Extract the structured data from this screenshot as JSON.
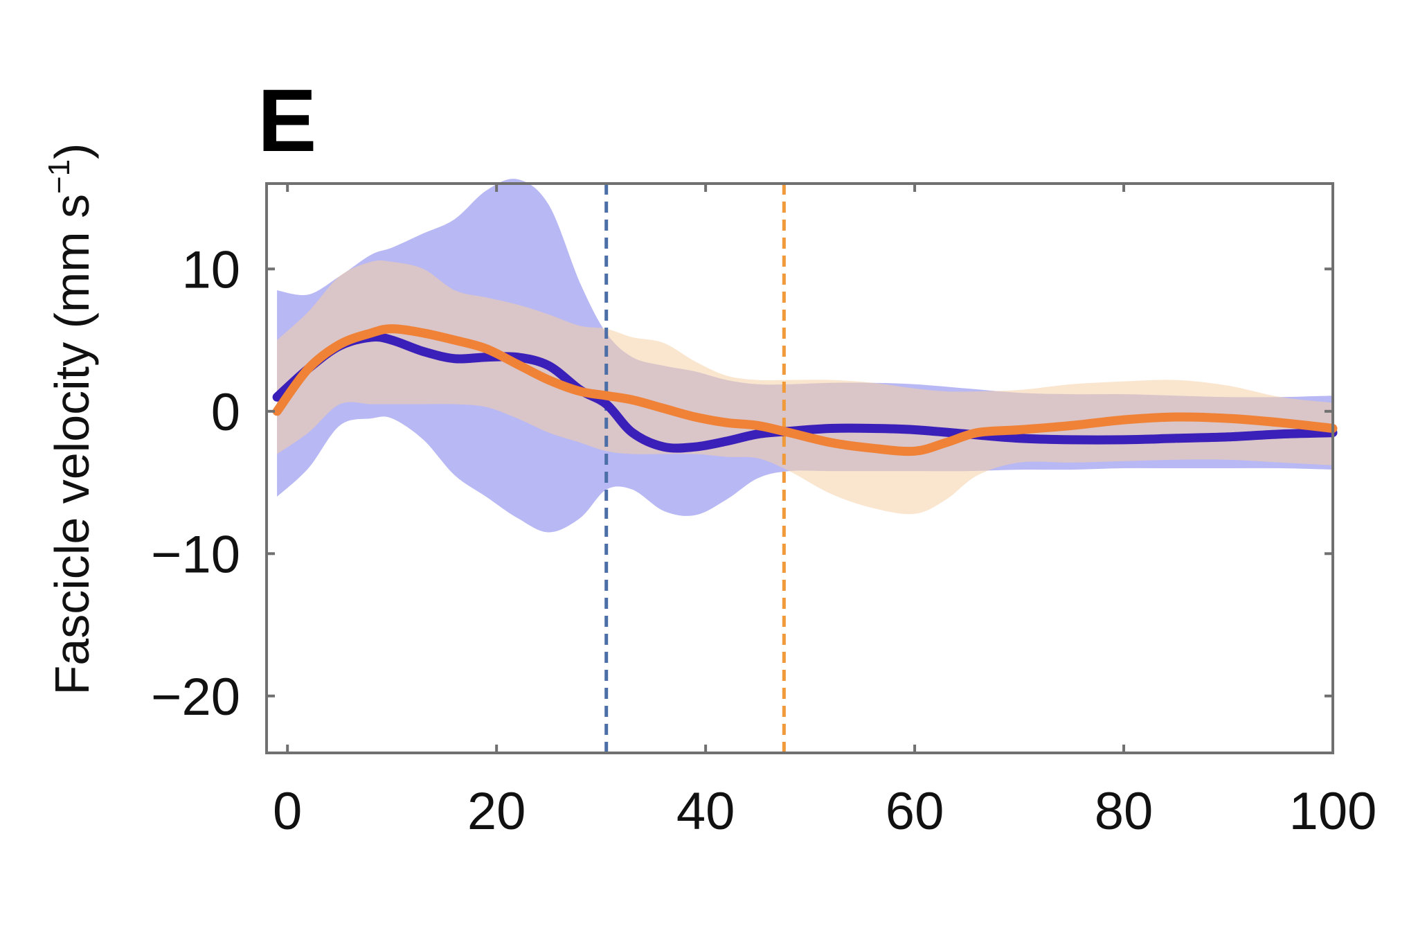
{
  "chart_data": {
    "type": "line",
    "panel_label": "E",
    "ylabel": "Fascicle velocity (mm s",
    "ylabel_sup": "−1",
    "ylabel_end": ")",
    "xlim": [
      -2,
      100
    ],
    "ylim": [
      -24,
      16
    ],
    "x_ticks": [
      0,
      20,
      40,
      60,
      80,
      100
    ],
    "x_tick_labels": [
      "0",
      "20",
      "40",
      "60",
      "80",
      "100"
    ],
    "y_ticks": [
      10,
      0,
      -10,
      -20
    ],
    "y_tick_labels": [
      "10",
      "0",
      "−10",
      "−20"
    ],
    "grid": false,
    "colors": {
      "blue_line": "#3a1fb8",
      "blue_band": "#9a9af0",
      "orange_line": "#ef8236",
      "orange_band": "#f6cfa6",
      "axes": "#707070"
    },
    "vlines": [
      {
        "x": 30.5,
        "color": "#4d6fa8"
      },
      {
        "x": 47.5,
        "color": "#f19a3a"
      }
    ],
    "series": [
      {
        "color": "#3a1fb8",
        "band_color": "#9a9af0",
        "x": [
          -1,
          2,
          5,
          8,
          10,
          13,
          16,
          19,
          22,
          25,
          28,
          30.5,
          33,
          36,
          39,
          42,
          45,
          48,
          52,
          56,
          60,
          65,
          70,
          75,
          80,
          85,
          90,
          95,
          100
        ],
        "y": [
          1,
          3,
          4.6,
          5.2,
          5,
          4.2,
          3.7,
          3.8,
          3.8,
          3.2,
          1.5,
          0.5,
          -1.5,
          -2.5,
          -2.5,
          -2.1,
          -1.6,
          -1.4,
          -1.2,
          -1.2,
          -1.3,
          -1.6,
          -1.9,
          -2.0,
          -2.0,
          -1.9,
          -1.8,
          -1.6,
          -1.5
        ],
        "upper": [
          8.5,
          8.2,
          9.5,
          11,
          11.5,
          12.5,
          13.5,
          15.5,
          16.3,
          14.5,
          9,
          5.5,
          3.8,
          3.2,
          2.8,
          2.2,
          1.9,
          1.9,
          2.0,
          2.0,
          1.9,
          1.6,
          1.3,
          1.2,
          1.2,
          1.1,
          1.0,
          1.0,
          1.1
        ],
        "lower": [
          -6,
          -4,
          -1,
          -0.5,
          -0.5,
          -2,
          -4.5,
          -6,
          -7.5,
          -8.5,
          -7.5,
          -5.5,
          -5.5,
          -7,
          -7.3,
          -6.2,
          -4.7,
          -4.2,
          -4.2,
          -4.2,
          -4.2,
          -4.2,
          -4.1,
          -4.1,
          -4.0,
          -4.0,
          -4.0,
          -4.0,
          -4.1
        ]
      },
      {
        "color": "#ef8236",
        "band_color": "#f6cfa6",
        "x": [
          -1,
          2,
          5,
          8,
          10,
          13,
          16,
          19,
          22,
          25,
          28,
          30.5,
          33,
          36,
          39,
          42,
          45,
          48,
          52,
          56,
          60,
          63,
          66,
          70,
          75,
          80,
          85,
          90,
          95,
          100
        ],
        "y": [
          0,
          3,
          4.7,
          5.5,
          5.8,
          5.5,
          5,
          4.4,
          3.3,
          2.2,
          1.4,
          1.1,
          0.8,
          0.2,
          -0.4,
          -0.8,
          -1.0,
          -1.5,
          -2.2,
          -2.6,
          -2.8,
          -2.2,
          -1.5,
          -1.3,
          -1.0,
          -0.6,
          -0.4,
          -0.5,
          -0.8,
          -1.2
        ],
        "upper": [
          5,
          7,
          9.5,
          10.5,
          10.5,
          10,
          8.5,
          8,
          7.5,
          6.8,
          6,
          5.8,
          5.2,
          4.8,
          3.5,
          2.5,
          2.2,
          2.2,
          2.2,
          2.0,
          1.6,
          1.4,
          1.4,
          1.5,
          1.9,
          2.1,
          2.2,
          1.8,
          1.0,
          0.6
        ],
        "lower": [
          -3,
          -1.5,
          0.5,
          0.5,
          0.5,
          0.5,
          0.5,
          0.3,
          -0.5,
          -1.5,
          -2.2,
          -2.8,
          -3,
          -3,
          -3,
          -3.2,
          -3.3,
          -4.2,
          -5.8,
          -6.8,
          -7.2,
          -6.2,
          -4.5,
          -3.6,
          -3.6,
          -3.5,
          -3.4,
          -3.4,
          -3.6,
          -3.8
        ]
      }
    ]
  }
}
